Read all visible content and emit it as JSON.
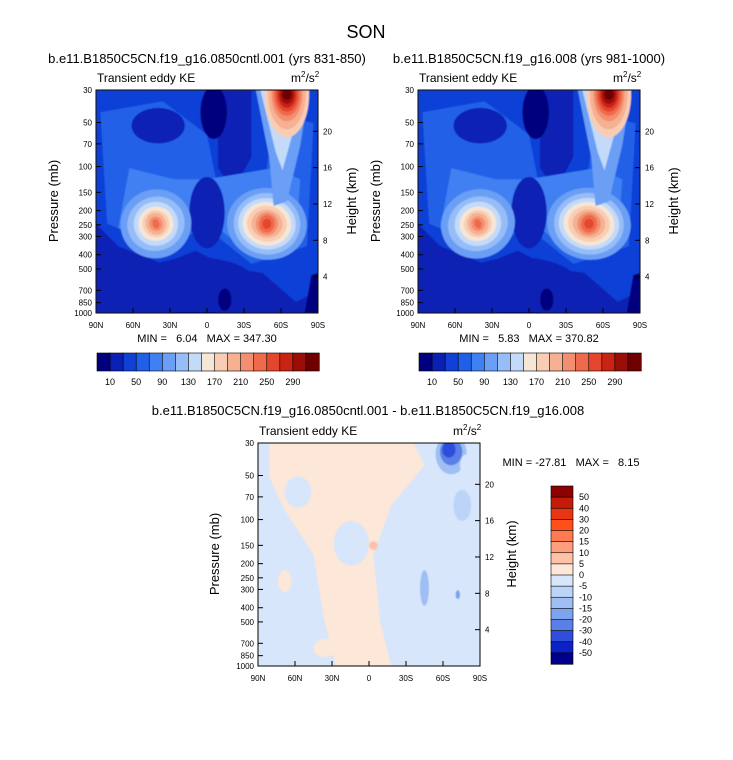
{
  "page": {
    "title": "SON"
  },
  "chart_data": [
    {
      "type": "heatmap",
      "title": "b.e11.B1850C5CN.f19_g16.0850cntl.001 (yrs 831-850)",
      "subtitle_left": "Transient eddy KE",
      "units": "m²/s²",
      "xlabel": "",
      "ylabel": "Pressure (mb)",
      "y2label": "Height (km)",
      "x_ticks": [
        "90N",
        "60N",
        "30N",
        "0",
        "30S",
        "60S",
        "90S"
      ],
      "y_ticks": [
        "30",
        "50",
        "70",
        "100",
        "150",
        "200",
        "250",
        "300",
        "400",
        "500",
        "700",
        "850",
        "1000"
      ],
      "y2_ticks": [
        "20",
        "16",
        "12",
        "8",
        "4"
      ],
      "min_label": "MIN =   6.04   MAX = 347.30",
      "min": 6.04,
      "max": 347.3,
      "colorbar_labels": [
        "10",
        "50",
        "90",
        "130",
        "170",
        "210",
        "250",
        "290"
      ]
    },
    {
      "type": "heatmap",
      "title": "b.e11.B1850C5CN.f19_g16.008 (yrs 981-1000)",
      "subtitle_left": "Transient eddy KE",
      "units": "m²/s²",
      "xlabel": "",
      "ylabel": "Pressure (mb)",
      "y2label": "Height (km)",
      "x_ticks": [
        "90N",
        "60N",
        "30N",
        "0",
        "30S",
        "60S",
        "90S"
      ],
      "y_ticks": [
        "30",
        "50",
        "70",
        "100",
        "150",
        "200",
        "250",
        "300",
        "400",
        "500",
        "700",
        "850",
        "1000"
      ],
      "y2_ticks": [
        "20",
        "16",
        "12",
        "8",
        "4"
      ],
      "min_label": "MIN =   5.83   MAX = 370.82",
      "min": 5.83,
      "max": 370.82,
      "colorbar_labels": [
        "10",
        "50",
        "90",
        "130",
        "170",
        "210",
        "250",
        "290"
      ]
    },
    {
      "type": "heatmap",
      "title": "b.e11.B1850C5CN.f19_g16.0850cntl.001 - b.e11.B1850C5CN.f19_g16.008",
      "subtitle_left": "Transient eddy KE",
      "units": "m²/s²",
      "xlabel": "",
      "ylabel": "Pressure (mb)",
      "y2label": "Height (km)",
      "x_ticks": [
        "90N",
        "60N",
        "30N",
        "0",
        "30S",
        "60S",
        "90S"
      ],
      "y_ticks": [
        "30",
        "50",
        "70",
        "100",
        "150",
        "200",
        "250",
        "300",
        "400",
        "500",
        "700",
        "850",
        "1000"
      ],
      "y2_ticks": [
        "20",
        "16",
        "12",
        "8",
        "4"
      ],
      "min_label": "MIN = -27.81   MAX =   8.15",
      "min": -27.81,
      "max": 8.15,
      "colorbar_labels": [
        "50",
        "40",
        "30",
        "20",
        "15",
        "10",
        "5",
        "0",
        "-5",
        "-10",
        "-15",
        "-20",
        "-30",
        "-40",
        "-50"
      ]
    }
  ],
  "colors": {
    "seq": [
      "#00007f",
      "#0a20b4",
      "#1040d6",
      "#2060e8",
      "#3f80f2",
      "#6a9ff5",
      "#96bdf7",
      "#c3daf9",
      "#f6e6d6",
      "#f9cdb4",
      "#f6b092",
      "#f38e70",
      "#ef6a4c",
      "#e3462d",
      "#c82313",
      "#9a0e07",
      "#6e0000"
    ],
    "div": [
      "#8b0000",
      "#c41a0a",
      "#e83514",
      "#ff4f1a",
      "#ff7a50",
      "#ff9e7e",
      "#ffc2a9",
      "#fde7d8",
      "#d7e6fa",
      "#bcd4f7",
      "#9fbef3",
      "#7ea3ee",
      "#5a7fe6",
      "#2f4edb",
      "#0c22c5",
      "#00008b"
    ]
  }
}
